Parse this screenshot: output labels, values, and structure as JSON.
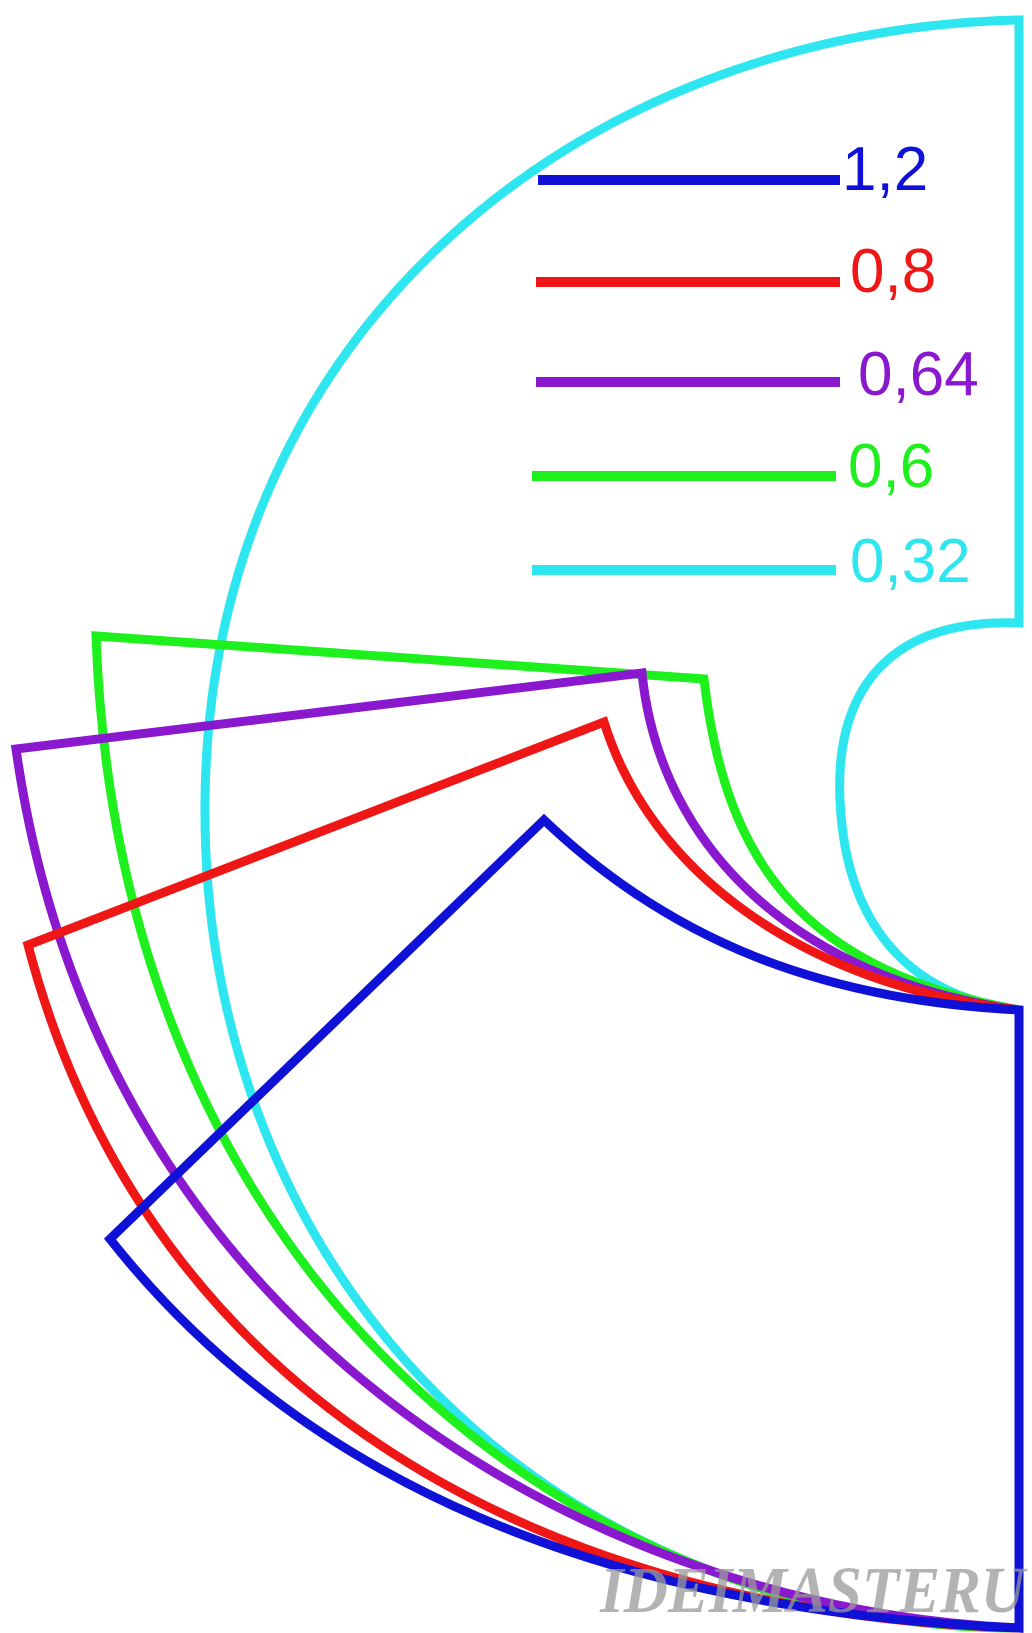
{
  "legend": [
    {
      "label": "1,2",
      "color": "#0f11d6"
    },
    {
      "label": "0,8",
      "color": "#ef1616"
    },
    {
      "label": "0,64",
      "color": "#8a18cf"
    },
    {
      "label": "0,6",
      "color": "#1ef01e"
    },
    {
      "label": "0,32",
      "color": "#2ee6ef"
    }
  ],
  "watermark": {
    "text": "IDEIMASTERU",
    "color": "#9a9a9a"
  }
}
